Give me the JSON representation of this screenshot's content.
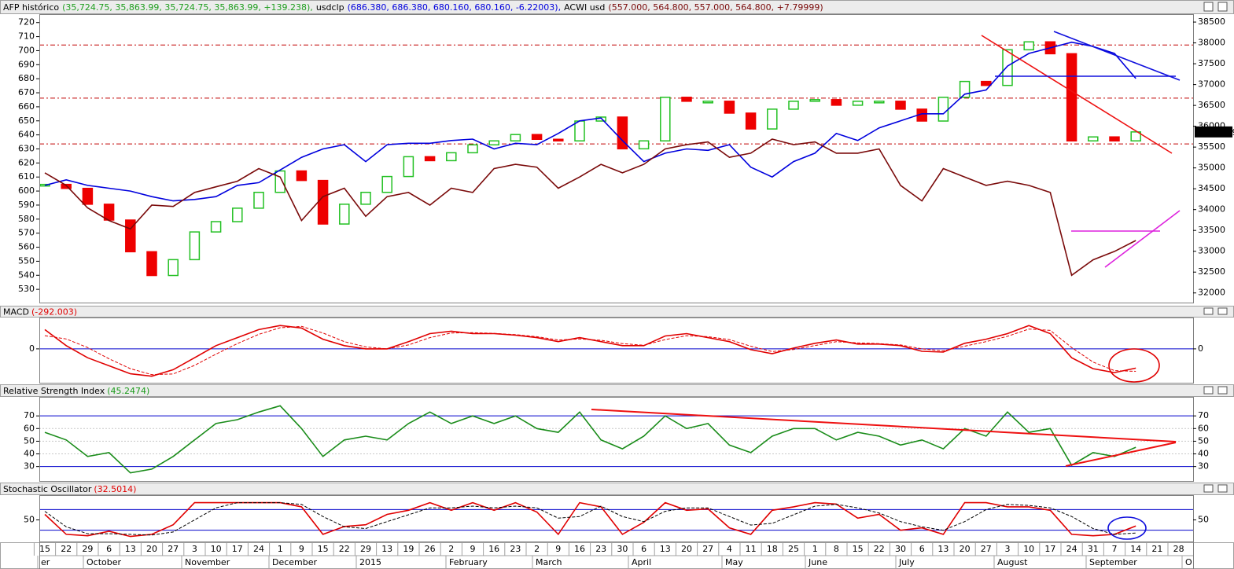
{
  "chart_data": [
    {
      "type": "line",
      "categories": [
        "15",
        "22",
        "29",
        "6",
        "13",
        "20",
        "27",
        "3",
        "10",
        "17",
        "24",
        "1",
        "9",
        "15",
        "22",
        "29",
        "13",
        "19",
        "26",
        "2",
        "9",
        "16",
        "23",
        "2",
        "9",
        "16",
        "23",
        "30",
        "6",
        "13",
        "20",
        "27",
        "4",
        "11",
        "18",
        "25",
        "1",
        "8",
        "15",
        "22",
        "30",
        "6",
        "13",
        "20",
        "27",
        "3",
        "10",
        "17",
        "24",
        "31",
        "7",
        "14",
        "21",
        "28"
      ],
      "months": [
        "er",
        "October",
        "November",
        "December",
        "2015",
        "February",
        "March",
        "April",
        "May",
        "June",
        "July",
        "August",
        "September",
        "O"
      ],
      "ylim": [
        520,
        726
      ],
      "yticks": [
        530,
        540,
        550,
        560,
        570,
        580,
        590,
        600,
        610,
        620,
        630,
        640,
        650,
        660,
        670,
        680,
        690,
        700,
        710,
        720
      ],
      "y2lim": [
        31750,
        38690
      ],
      "y2ticks": [
        32000,
        32500,
        33000,
        33500,
        34000,
        34500,
        35000,
        35500,
        36000,
        36500,
        37000,
        37500,
        38000,
        38500
      ],
      "reference_lines": {
        "values": [
          37950,
          36675,
          35575
        ],
        "axis": "y2",
        "color": "#c00000"
      },
      "last_value_label": "35863.99",
      "series": [
        {
          "name": "AFP histórico",
          "header_values": "(35,724.75, 35,863.99, 35,724.75, 35,863.99, +139.238),",
          "type": "candlestick",
          "axis": "y2",
          "color": "#1e9e1e",
          "up_color": "#22c022",
          "down_color": "#ee0000",
          "values": [
            34604,
            34509,
            34129,
            33749,
            32989,
            32419,
            32799,
            33464,
            33711,
            34034,
            34414,
            34927,
            34699,
            33654,
            34129,
            34414,
            34794,
            35269,
            35174,
            35364,
            35554,
            35649,
            35801,
            35687,
            35649,
            36125,
            36220,
            35459,
            35649,
            36695,
            36600,
            36600,
            36315,
            35935,
            36410,
            36600,
            36638,
            36505,
            36600,
            36600,
            36410,
            36125,
            36695,
            37075,
            36980,
            37835,
            38025,
            37740,
            35649,
            35744,
            35649,
            35863.99,
            null,
            null
          ]
        },
        {
          "name": "usdclp",
          "header_values": "(686.380, 686.380, 680.160, 680.160, -6.22003),",
          "color": "#0000dd",
          "values": [
            604,
            608,
            604,
            602,
            600,
            596,
            593,
            594,
            596,
            604,
            606,
            615,
            624,
            630,
            633,
            621,
            633,
            634,
            634,
            636,
            637,
            630,
            634,
            633,
            641,
            650,
            652,
            636,
            621,
            627,
            630,
            629,
            633,
            617,
            610,
            621,
            627,
            641,
            636,
            645,
            650,
            655,
            655,
            669,
            672,
            689,
            698,
            702,
            706,
            703,
            698,
            680.16,
            null,
            null
          ]
        },
        {
          "name": "ACWI usd",
          "header_values": "(557.000, 564.800, 557.000, 564.800, +7.79999)",
          "color": "#7a0a0a",
          "values": [
            613,
            604,
            588,
            579,
            573,
            590,
            589,
            599,
            603,
            607,
            616,
            610,
            579,
            596,
            602,
            582,
            596,
            599,
            590,
            602,
            599,
            616,
            619,
            617,
            602,
            610,
            619,
            613,
            619,
            630,
            633,
            635,
            624,
            627,
            637,
            633,
            635,
            627,
            627,
            630,
            604,
            593,
            616,
            610,
            604,
            607,
            604,
            599,
            540,
            551,
            557,
            564.8,
            null,
            null
          ]
        }
      ]
    },
    {
      "type": "line",
      "title": "MACD",
      "title_value": "(-292.003)",
      "title_value_color": "#e00000",
      "ylim": [
        -525,
        475
      ],
      "yticks": [
        0
      ],
      "reference_lines": {
        "values": [
          0
        ],
        "color": "#0000cc"
      },
      "series": [
        {
          "color": "#e00000",
          "values": [
            292,
            49,
            -134,
            -256,
            -377,
            -414,
            -316,
            -134,
            49,
            170,
            292,
            353,
            316,
            146,
            49,
            0,
            0,
            110,
            231,
            268,
            231,
            231,
            207,
            170,
            110,
            170,
            110,
            49,
            49,
            195,
            231,
            170,
            110,
            -12,
            -73,
            12,
            85,
            134,
            73,
            73,
            49,
            -37,
            -49,
            85,
            146,
            231,
            353,
            231,
            -134,
            -300,
            -360,
            -292.003,
            null,
            null
          ]
        },
        {
          "color": "#e00000",
          "dash": true,
          "values": [
            200,
            150,
            20,
            -150,
            -300,
            -390,
            -380,
            -250,
            -80,
            80,
            220,
            320,
            340,
            240,
            110,
            30,
            0,
            60,
            170,
            240,
            245,
            235,
            215,
            185,
            135,
            150,
            130,
            80,
            55,
            140,
            200,
            185,
            140,
            40,
            -40,
            -10,
            50,
            110,
            90,
            80,
            60,
            0,
            -30,
            40,
            110,
            190,
            300,
            280,
            20,
            -200,
            -330,
            -340,
            null,
            null
          ]
        }
      ]
    },
    {
      "type": "line",
      "title": "Relative Strength Index",
      "title_value": "(45.2474)",
      "title_value_color": "#1a9a1a",
      "ylim": [
        18,
        85
      ],
      "yticks": [
        30,
        40,
        50,
        60,
        70
      ],
      "reference_lines": {
        "values": [
          70,
          30
        ],
        "color": "#0000cc"
      },
      "minor_lines": {
        "values": [
          60,
          50,
          40
        ],
        "color": "#c8c8c8"
      },
      "series": [
        {
          "color": "#1a8c1a",
          "values": [
            57,
            51,
            38,
            41,
            25,
            28,
            38,
            51,
            64,
            67,
            73,
            78,
            60,
            38,
            51,
            54,
            51,
            64,
            73,
            64,
            70,
            64,
            70,
            60,
            57,
            73,
            51,
            44,
            54,
            70,
            60,
            64,
            47,
            41,
            54,
            60,
            60,
            51,
            57,
            54,
            47,
            51,
            44,
            60,
            54,
            73,
            57,
            60,
            31,
            41,
            38,
            45.2474,
            null,
            null
          ]
        }
      ]
    },
    {
      "type": "line",
      "title": "Stochastic Oscillator",
      "title_value": "(32.5014)",
      "title_value_color": "#e00000",
      "ylim": [
        -15,
        122
      ],
      "yticks": [
        50
      ],
      "reference_lines": {
        "values": [
          80,
          20
        ],
        "color": "#0000cc"
      },
      "series": [
        {
          "color": "#e00000",
          "values": [
            66,
            8,
            4,
            17,
            2,
            8,
            36,
            100,
            100,
            100,
            100,
            100,
            88,
            8,
            31,
            36,
            66,
            78,
            100,
            78,
            100,
            78,
            100,
            73,
            8,
            100,
            88,
            8,
            43,
            100,
            78,
            82,
            27,
            8,
            78,
            88,
            100,
            96,
            55,
            66,
            20,
            27,
            8,
            100,
            100,
            88,
            88,
            78,
            8,
            4,
            8,
            32.5014,
            null,
            null
          ]
        },
        {
          "color": "#000000",
          "dash": true,
          "values": [
            75,
            30,
            10,
            10,
            8,
            6,
            15,
            50,
            85,
            100,
            100,
            100,
            95,
            60,
            30,
            25,
            45,
            65,
            85,
            85,
            90,
            85,
            90,
            85,
            55,
            60,
            90,
            60,
            45,
            75,
            85,
            85,
            60,
            35,
            40,
            65,
            90,
            95,
            85,
            70,
            45,
            30,
            20,
            45,
            80,
            95,
            92,
            85,
            60,
            25,
            8,
            12,
            null,
            null
          ]
        }
      ]
    }
  ]
}
